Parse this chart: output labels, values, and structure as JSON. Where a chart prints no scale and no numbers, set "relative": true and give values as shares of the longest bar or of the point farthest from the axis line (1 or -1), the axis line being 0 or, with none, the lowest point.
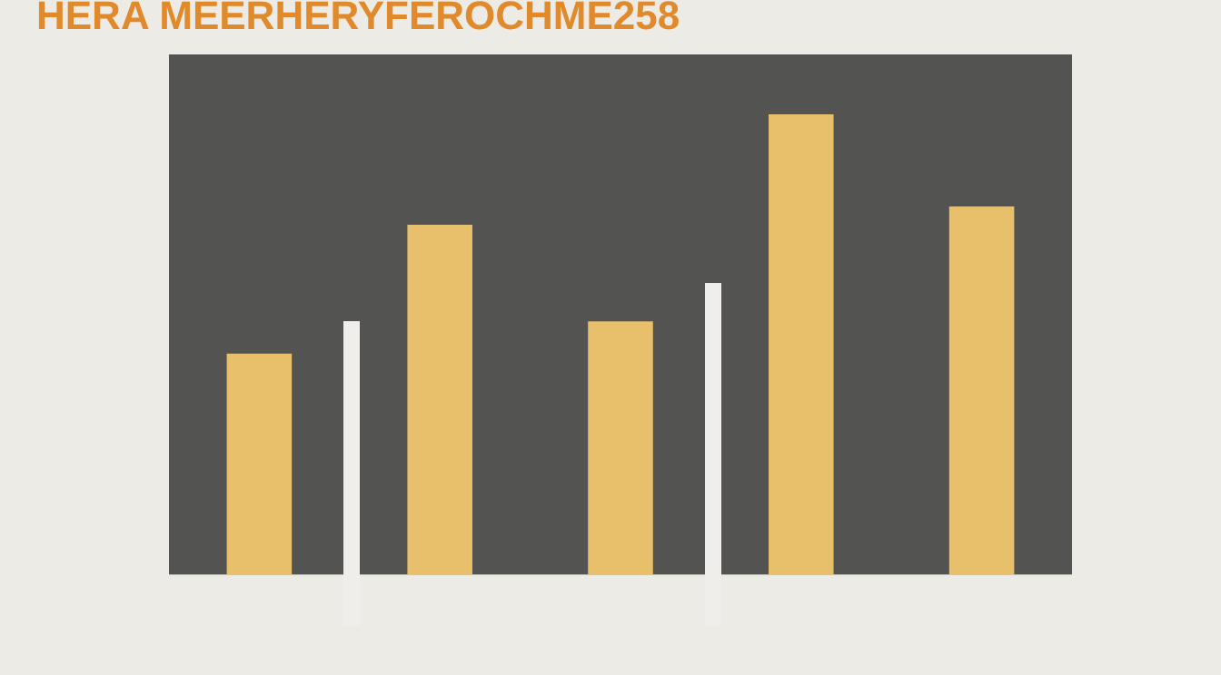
{
  "chart_data": {
    "type": "bar",
    "title": "HERA MEERHERYFEROCHME258",
    "relative": true,
    "categories": [
      null,
      null,
      null,
      null,
      null
    ],
    "series": [
      {
        "color": "#e8bf6a",
        "values": [
          0.48,
          0.76,
          0.55,
          1,
          0.8
        ]
      }
    ],
    "grid": false,
    "legend": false
  }
}
